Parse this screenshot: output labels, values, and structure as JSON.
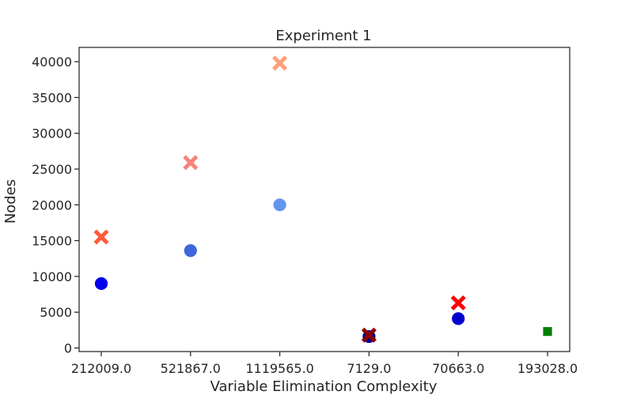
{
  "chart_data": {
    "type": "scatter",
    "title": "Experiment 1",
    "xlabel": "Variable Elimination Complexity",
    "ylabel": "Nodes",
    "categories": [
      "212009.0",
      "521867.0",
      "1119565.0",
      "7129.0",
      "70663.0",
      "193028.0"
    ],
    "ylim": [
      -500,
      42000
    ],
    "yticks": [
      0,
      5000,
      10000,
      15000,
      20000,
      25000,
      30000,
      35000,
      40000
    ],
    "grid": false,
    "legend": "none",
    "points": [
      {
        "category": "212009.0",
        "y": 9000,
        "marker": "circle",
        "color": "#0000ee"
      },
      {
        "category": "212009.0",
        "y": 15500,
        "marker": "x",
        "color": "#ff5a3c"
      },
      {
        "category": "521867.0",
        "y": 13600,
        "marker": "circle",
        "color": "#3e66db"
      },
      {
        "category": "521867.0",
        "y": 25900,
        "marker": "x",
        "color": "#f7837a"
      },
      {
        "category": "1119565.0",
        "y": 20000,
        "marker": "circle",
        "color": "#6495ed"
      },
      {
        "category": "1119565.0",
        "y": 39800,
        "marker": "x",
        "color": "#ffa07a"
      },
      {
        "category": "7129.0",
        "y": 1600,
        "marker": "circle",
        "color": "#00008b"
      },
      {
        "category": "7129.0",
        "y": 1800,
        "marker": "x",
        "color": "#8b0000"
      },
      {
        "category": "70663.0",
        "y": 4100,
        "marker": "circle",
        "color": "#0000cd"
      },
      {
        "category": "70663.0",
        "y": 6300,
        "marker": "x",
        "color": "#ff0000"
      },
      {
        "category": "193028.0",
        "y": 2300,
        "marker": "square",
        "color": "#008000"
      }
    ]
  }
}
